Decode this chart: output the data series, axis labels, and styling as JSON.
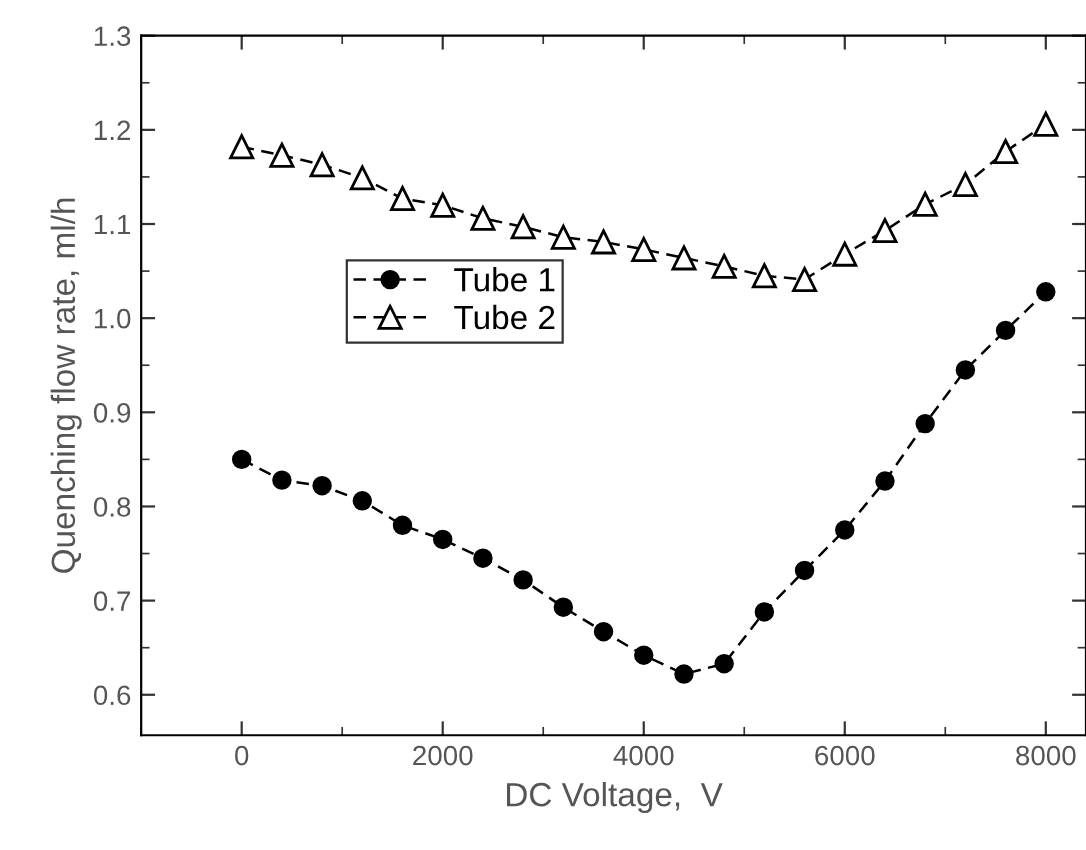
{
  "chart_data": {
    "type": "line",
    "xlabel": "DC Voltage,  V",
    "ylabel": "Quenching flow rate, ml/h",
    "x": [
      0,
      400,
      800,
      1200,
      1600,
      2000,
      2400,
      2800,
      3200,
      3600,
      4000,
      4400,
      4800,
      5200,
      5600,
      6000,
      6400,
      6800,
      7200,
      7600,
      8000
    ],
    "series": [
      {
        "name": "Tube 1",
        "color": "#000000",
        "marker": "circle",
        "values": [
          0.85,
          0.828,
          0.822,
          0.806,
          0.78,
          0.765,
          0.745,
          0.722,
          0.693,
          0.667,
          0.642,
          0.622,
          0.633,
          0.688,
          0.732,
          0.775,
          0.827,
          0.888,
          0.945,
          0.987,
          1.028
        ]
      },
      {
        "name": "Tube 2",
        "color": "#000000",
        "marker": "triangle",
        "values": [
          1.182,
          1.173,
          1.163,
          1.149,
          1.127,
          1.12,
          1.106,
          1.097,
          1.086,
          1.081,
          1.073,
          1.064,
          1.055,
          1.045,
          1.041,
          1.068,
          1.093,
          1.121,
          1.142,
          1.177,
          1.206
        ]
      }
    ],
    "line_style": "dashed",
    "xlim": [
      -1000,
      8400
    ],
    "ylim": [
      0.557,
      1.3
    ],
    "xticks": [
      0,
      2000,
      4000,
      6000,
      8000
    ],
    "yticks": [
      {
        "value": 0.6,
        "label": "0.6"
      },
      {
        "value": 0.7,
        "label": "0.7"
      },
      {
        "value": 0.8,
        "label": "0.8"
      },
      {
        "value": 0.9,
        "label": "0.9"
      },
      {
        "value": 1.0,
        "label": "1.0"
      },
      {
        "value": 1.1,
        "label": "1.1"
      },
      {
        "value": 1.2,
        "label": "1.2"
      },
      {
        "value": 1.3,
        "label": "1.3"
      }
    ],
    "grid": false,
    "legend": "left"
  }
}
